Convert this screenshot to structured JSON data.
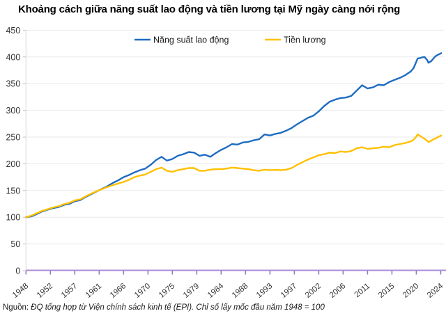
{
  "title": "Khoảng cách giữa năng suất lao động và tiền lương tại Mỹ ngày càng nới rộng",
  "footer": {
    "prefix": "Nguồn:",
    "text": "ĐQ tổng hợp từ Viện chính sách kinh tế (EPI). Chỉ số lấy mốc đầu năm 1948 = 100"
  },
  "colors": {
    "productivity_line": "#1e6cc2",
    "wage_line": "#ffc000",
    "grid": "#e9e9e9",
    "y_axis": "#d9d9d9",
    "y_tick": "#bfbfbf",
    "x_axis": "#aa8ed6",
    "x_tick": "#9678c8",
    "axis_text": "#333333",
    "legend_text": "#1a1a1a"
  },
  "chart_data": {
    "type": "line",
    "title": "Khoảng cách giữa năng suất lao động và tiền lương tại Mỹ ngày càng nới rộng",
    "xlabel": "",
    "ylabel": "",
    "ylim": [
      0,
      450
    ],
    "ytick_step": 50,
    "yticks": [
      0,
      50,
      100,
      150,
      200,
      250,
      300,
      350,
      400,
      450
    ],
    "grid": true,
    "legend_position": "top",
    "index_note": "1948 = 100",
    "x": [
      1948,
      1949,
      1950,
      1951,
      1952,
      1953,
      1954,
      1955,
      1956,
      1957,
      1958,
      1959,
      1960,
      1961,
      1962,
      1963,
      1964,
      1965,
      1966,
      1967,
      1968,
      1969,
      1970,
      1971,
      1972,
      1973,
      1974,
      1975,
      1976,
      1977,
      1978,
      1979,
      1980,
      1981,
      1982,
      1983,
      1984,
      1985,
      1986,
      1987,
      1988,
      1989,
      1990,
      1991,
      1992,
      1993,
      1994,
      1995,
      1996,
      1997,
      1998,
      1999,
      2000,
      2001,
      2002,
      2003,
      2004,
      2005,
      2006,
      2007,
      2008,
      2009,
      2010,
      2011,
      2012,
      2013,
      2014,
      2015,
      2016,
      2017,
      2018,
      2019,
      2019.5,
      2020,
      2020.25,
      2020.75,
      2021,
      2021.5,
      2022,
      2022.25,
      2022.75,
      2023,
      2023.5,
      2024,
      2024.6
    ],
    "xticks": {
      "positions": [
        1948,
        1952.5,
        1957,
        1961.5,
        1966,
        1970.5,
        1975,
        1979.5,
        1984,
        1988.5,
        1993,
        1997.5,
        2002,
        2006.5,
        2011,
        2015.5,
        2020,
        2024.5
      ],
      "labels": [
        "1948",
        "1952",
        "1957",
        "1961",
        "1966",
        "1970",
        "1975",
        "1979",
        "1984",
        "1988",
        "1993",
        "1997",
        "2002",
        "2006",
        "2011",
        "2015",
        "2020",
        "2024"
      ]
    },
    "series": [
      {
        "name": "Năng suất lao động",
        "color": "#1e6cc2",
        "values": [
          100,
          101.5,
          106,
          111,
          114,
          117,
          119,
          123,
          125,
          130,
          132,
          138,
          143,
          148,
          153,
          158,
          164,
          169,
          175,
          179,
          184,
          188,
          191,
          198,
          207,
          213,
          206,
          209,
          215,
          218,
          222,
          221,
          215,
          217,
          213,
          220,
          226,
          231,
          237,
          236,
          240,
          241,
          244,
          246,
          255,
          253,
          256,
          258,
          262,
          267,
          274,
          280,
          286,
          290,
          298,
          308,
          316,
          320,
          323,
          324,
          327,
          337,
          347,
          341,
          343,
          348,
          347,
          353,
          357,
          361,
          366,
          373,
          379,
          391,
          397,
          398,
          399,
          400,
          394,
          389,
          392,
          395,
          401,
          404,
          407
        ]
      },
      {
        "name": "Tiền lương",
        "color": "#ffc000",
        "values": [
          100,
          103,
          107.5,
          112,
          115,
          118.5,
          120.5,
          124.5,
          127,
          131.5,
          133.5,
          139,
          144,
          148.5,
          152.5,
          156.5,
          160,
          163,
          166,
          170,
          175,
          178,
          180,
          185,
          190,
          193,
          187,
          185,
          188,
          190,
          192,
          192,
          187,
          187,
          189,
          190,
          190,
          191,
          193,
          192,
          191,
          190,
          188,
          187,
          189,
          188,
          188.5,
          188,
          189,
          192,
          198,
          203,
          208,
          212,
          216,
          218,
          221,
          220,
          223,
          222,
          224,
          229,
          231,
          228,
          229,
          230,
          232,
          231,
          235,
          237,
          239,
          242,
          245,
          251,
          255,
          252,
          250,
          247,
          243,
          241,
          243,
          245,
          247,
          250,
          253
        ]
      }
    ]
  }
}
